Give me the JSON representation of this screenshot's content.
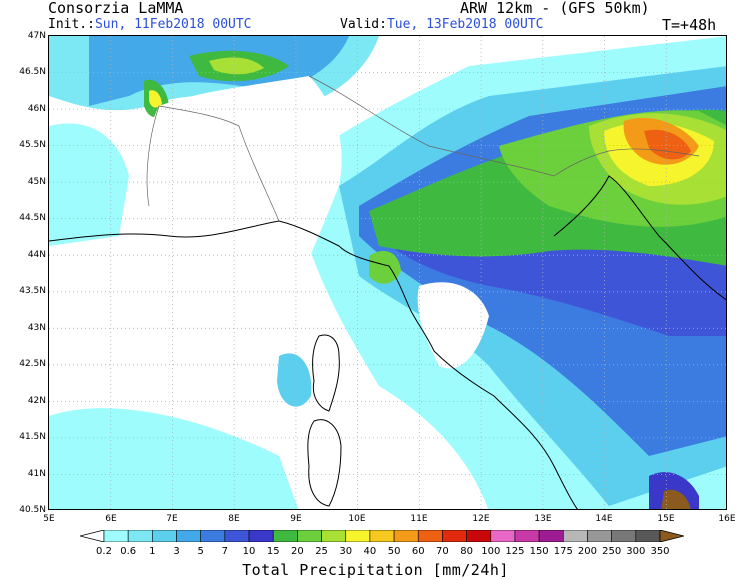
{
  "header": {
    "org": "Consorzia LaMMA",
    "model": "ARW 12km - (GFS 50km)",
    "init_label": "Init.:",
    "init_value": "Sun, 11Feb2018 00UTC",
    "valid_label": "Valid:",
    "valid_value": "Tue, 13Feb2018 00UTC",
    "lead_time": "T=+48h"
  },
  "map": {
    "lat_labels": [
      "47N",
      "46.5N",
      "46N",
      "45.5N",
      "45N",
      "44.5N",
      "44N",
      "43.5N",
      "43N",
      "42.5N",
      "42N",
      "41.5N",
      "41N",
      "40.5N"
    ],
    "lon_labels": [
      "5E",
      "6E",
      "7E",
      "8E",
      "9E",
      "10E",
      "11E",
      "12E",
      "13E",
      "14E",
      "15E",
      "16E"
    ],
    "lat_range": [
      40.5,
      47
    ],
    "lon_range": [
      5,
      16
    ]
  },
  "legend": {
    "title": "Total Precipitation [mm/24h]",
    "levels": [
      "0.2",
      "0.6",
      "1",
      "3",
      "5",
      "7",
      "10",
      "15",
      "20",
      "25",
      "30",
      "40",
      "50",
      "60",
      "70",
      "80",
      "100",
      "125",
      "150",
      "175",
      "200",
      "250",
      "300",
      "350"
    ],
    "colors": [
      "#9ffcfc",
      "#7ce8f4",
      "#5ccfee",
      "#44a9e8",
      "#3c7ce0",
      "#3e55d8",
      "#3a38c8",
      "#3fb93f",
      "#6ccf3c",
      "#a8e036",
      "#f6f42c",
      "#f7c820",
      "#f39a18",
      "#ee6012",
      "#e02c0c",
      "#c8080a",
      "#e868c8",
      "#c838a8",
      "#9c1c94",
      "#b8b8b8",
      "#989898",
      "#787878",
      "#585858",
      "#3a3a3a",
      "#8a5a1e"
    ]
  }
}
